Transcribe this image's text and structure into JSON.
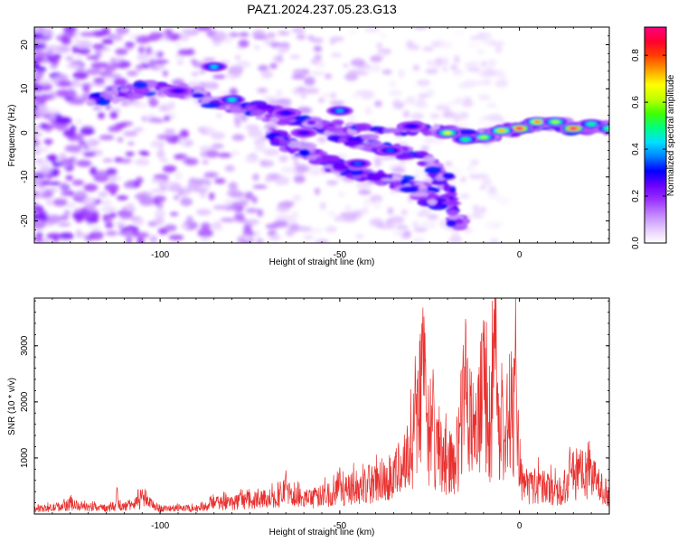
{
  "figure": {
    "title": "PAZ1.2024.237.05.23.G13"
  },
  "chart_data": [
    {
      "type": "heatmap",
      "xlabel": "Height of straight line (km)",
      "ylabel": "Frequency (Hz)",
      "xlim": [
        -135,
        25
      ],
      "ylim": [
        -25,
        24
      ],
      "xticks": [
        -100,
        -50,
        0
      ],
      "yticks": [
        -20,
        -10,
        0,
        10,
        20
      ],
      "colorbar": {
        "label": "Normalized spectral amplitude",
        "range": [
          0,
          0.92
        ],
        "ticks": [
          0.0,
          0.2,
          0.4,
          0.6,
          0.8
        ],
        "colors": [
          "#ffffff",
          "#e4c8ff",
          "#c084ff",
          "#9b30ff",
          "#6a00ff",
          "#0000ff",
          "#0080ff",
          "#00e0ff",
          "#00ff80",
          "#40ff00",
          "#c0ff00",
          "#ffff00",
          "#ffa000",
          "#ff4000",
          "#ff0030",
          "#ff0080"
        ]
      },
      "ridges": [
        {
          "name": "",
          "points": [
            [
              -120,
              7
            ],
            [
              -100,
              11
            ],
            [
              -80,
              7
            ],
            [
              -65,
              4
            ],
            [
              -55,
              1
            ],
            [
              -45,
              -2
            ],
            [
              -35,
              -4
            ],
            [
              -25,
              -6
            ],
            [
              -20,
              -12
            ],
            [
              -17,
              -22
            ]
          ]
        },
        {
          "name": "",
          "points": [
            [
              -100,
              10
            ],
            [
              -85,
              7
            ],
            [
              -70,
              4
            ],
            [
              -55,
              2
            ],
            [
              -40,
              0
            ],
            [
              -28,
              1
            ],
            [
              -18,
              0
            ],
            [
              -12,
              -1
            ],
            [
              -5,
              0
            ],
            [
              0,
              1
            ],
            [
              5,
              2
            ],
            [
              10,
              2
            ],
            [
              15,
              1
            ],
            [
              20,
              1
            ],
            [
              25,
              1
            ]
          ]
        },
        {
          "name": "",
          "points": [
            [
              -70,
              0
            ],
            [
              -60,
              -4
            ],
            [
              -50,
              -8
            ],
            [
              -40,
              -10
            ],
            [
              -30,
              -12
            ],
            [
              -22,
              -16
            ]
          ]
        }
      ],
      "hotspots": [
        {
          "x": 0,
          "y": 1,
          "value": 0.9
        },
        {
          "x": 15,
          "y": 1,
          "value": 0.92
        },
        {
          "x": 5,
          "y": 2.5,
          "value": 0.75
        },
        {
          "x": -5,
          "y": 0.5,
          "value": 0.72
        },
        {
          "x": -10,
          "y": -1,
          "value": 0.6
        },
        {
          "x": -20,
          "y": 0,
          "value": 0.65
        },
        {
          "x": 10,
          "y": 2.5,
          "value": 0.6
        },
        {
          "x": -15,
          "y": -1.5,
          "value": 0.5
        },
        {
          "x": -80,
          "y": 7.5,
          "value": 0.45
        },
        {
          "x": -85,
          "y": 15,
          "value": 0.42
        },
        {
          "x": -50,
          "y": 5,
          "value": 0.4
        },
        {
          "x": -45,
          "y": -7,
          "value": 0.35
        },
        {
          "x": -36,
          "y": -4,
          "value": 0.35
        },
        {
          "x": -30,
          "y": 1.5,
          "value": 0.3
        },
        {
          "x": -60,
          "y": 0,
          "value": 0.28
        },
        {
          "x": -65,
          "y": 4.5,
          "value": 0.3
        },
        {
          "x": -95,
          "y": 9.5,
          "value": 0.28
        },
        {
          "x": 20,
          "y": 2,
          "value": 0.5
        },
        {
          "x": 25,
          "y": 1,
          "value": 0.55
        }
      ]
    },
    {
      "type": "line",
      "xlabel": "Height of straight line (km)",
      "ylabel": "SNR (10 * v/v)",
      "xlim": [
        -135,
        25
      ],
      "ylim": [
        0,
        3850
      ],
      "xticks": [
        -100,
        -50,
        0
      ],
      "yticks": [
        1000,
        2000,
        3000
      ],
      "series": [
        {
          "name": "",
          "color": "#e8312f",
          "envelope": [
            [
              -135,
              110
            ],
            [
              -130,
              150
            ],
            [
              -125,
              230
            ],
            [
              -120,
              160
            ],
            [
              -115,
              140
            ],
            [
              -110,
              180
            ],
            [
              -105,
              330
            ],
            [
              -100,
              140
            ],
            [
              -95,
              130
            ],
            [
              -90,
              140
            ],
            [
              -85,
              260
            ],
            [
              -80,
              280
            ],
            [
              -75,
              320
            ],
            [
              -70,
              380
            ],
            [
              -65,
              460
            ],
            [
              -60,
              360
            ],
            [
              -55,
              430
            ],
            [
              -50,
              550
            ],
            [
              -45,
              640
            ],
            [
              -40,
              740
            ],
            [
              -35,
              940
            ],
            [
              -32,
              1250
            ],
            [
              -30,
              1700
            ],
            [
              -28,
              2400
            ],
            [
              -27,
              3300
            ],
            [
              -26,
              2700
            ],
            [
              -25,
              1800
            ],
            [
              -23,
              1500
            ],
            [
              -21,
              1300
            ],
            [
              -19,
              1250
            ],
            [
              -17,
              1500
            ],
            [
              -15,
              3200
            ],
            [
              -13,
              1900
            ],
            [
              -11,
              2300
            ],
            [
              -10,
              3300
            ],
            [
              -9,
              2100
            ],
            [
              -8,
              2050
            ],
            [
              -7,
              3400
            ],
            [
              -6,
              2300
            ],
            [
              -5,
              2100
            ],
            [
              -4,
              1950
            ],
            [
              -3,
              1850
            ],
            [
              -2,
              2400
            ],
            [
              -1,
              2700
            ],
            [
              0,
              1200
            ],
            [
              1,
              700
            ],
            [
              3,
              650
            ],
            [
              5,
              700
            ],
            [
              8,
              620
            ],
            [
              11,
              560
            ],
            [
              14,
              820
            ],
            [
              17,
              950
            ],
            [
              20,
              880
            ],
            [
              23,
              650
            ],
            [
              25,
              420
            ]
          ],
          "peaks": [
            [
              -27,
              3850
            ],
            [
              -29,
              3050
            ],
            [
              -24,
              3100
            ],
            [
              -15,
              3600
            ],
            [
              -10,
              3550
            ],
            [
              -7,
              3650
            ],
            [
              -1,
              3100
            ],
            [
              -112,
              580
            ],
            [
              -105,
              530
            ],
            [
              -65,
              950
            ],
            [
              -50,
              900
            ],
            [
              -42,
              1000
            ],
            [
              14,
              1320
            ],
            [
              17,
              1200
            ]
          ]
        }
      ]
    }
  ]
}
